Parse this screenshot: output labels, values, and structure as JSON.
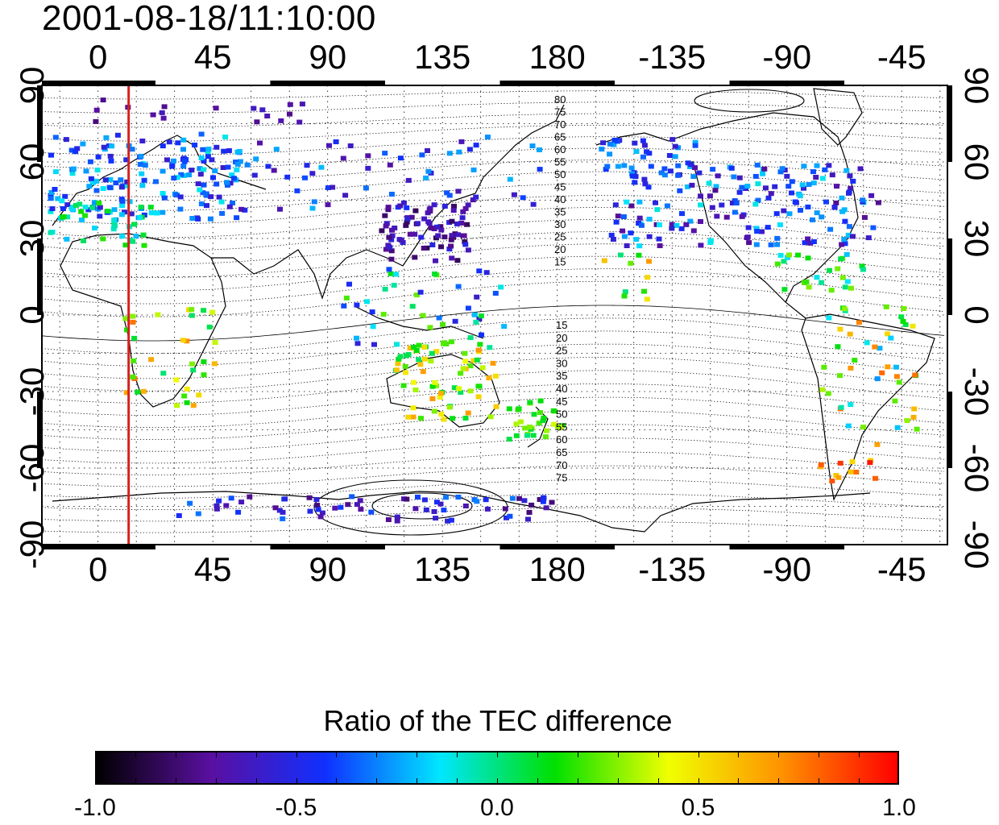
{
  "title": "2001-08-18/11:10:00",
  "lon_labels": [
    "0",
    "45",
    "90",
    "135",
    "180",
    "-135",
    "-90",
    "-45"
  ],
  "lat_labels": [
    "90",
    "60",
    "30",
    "0",
    "-30",
    "-60",
    "-90"
  ],
  "contour_labels_north": [
    "80",
    "75",
    "70",
    "65",
    "60",
    "55",
    "50",
    "45",
    "40",
    "35",
    "30",
    "25",
    "20",
    "15"
  ],
  "contour_labels_south": [
    "15",
    "20",
    "25",
    "30",
    "35",
    "40",
    "45",
    "50",
    "55",
    "60",
    "65",
    "70",
    "75"
  ],
  "colorbar": {
    "title": "Ratio of the TEC difference",
    "ticks": [
      "-1.0",
      "-0.5",
      "0.0",
      "0.5",
      "1.0"
    ],
    "colors": [
      "#000000",
      "#5a0fa0",
      "#1030ff",
      "#00e6ff",
      "#00e000",
      "#f0ff00",
      "#ff9000",
      "#ff0000"
    ]
  },
  "marker_longitude": 12,
  "marker_color": "#d42020",
  "tec_regions": [
    {
      "lon": [
        -20,
        55
      ],
      "lat": [
        38,
        72
      ],
      "count": 170,
      "values": [
        -0.6,
        -0.1
      ]
    },
    {
      "lon": [
        -20,
        20
      ],
      "lat": [
        28,
        45
      ],
      "count": 40,
      "values": [
        -0.3,
        0.2
      ]
    },
    {
      "lon": [
        -10,
        85
      ],
      "lat": [
        76,
        86
      ],
      "count": 18,
      "values": [
        -0.8,
        -0.6
      ]
    },
    {
      "lon": [
        55,
        180
      ],
      "lat": [
        42,
        72
      ],
      "count": 60,
      "values": [
        -0.7,
        -0.2
      ]
    },
    {
      "lon": [
        110,
        145
      ],
      "lat": [
        22,
        45
      ],
      "count": 80,
      "values": [
        -0.85,
        -0.5
      ]
    },
    {
      "lon": [
        95,
        160
      ],
      "lat": [
        -12,
        20
      ],
      "count": 45,
      "values": [
        -0.6,
        0.3
      ]
    },
    {
      "lon": [
        115,
        155
      ],
      "lat": [
        -40,
        -10
      ],
      "count": 70,
      "values": [
        0.0,
        0.7
      ]
    },
    {
      "lon": [
        160,
        182
      ],
      "lat": [
        -48,
        -32
      ],
      "count": 30,
      "values": [
        0.0,
        0.4
      ]
    },
    {
      "lon": [
        8,
        45
      ],
      "lat": [
        -35,
        5
      ],
      "count": 35,
      "values": [
        0.0,
        0.8
      ]
    },
    {
      "lon": [
        -160,
        -55
      ],
      "lat": [
        28,
        60
      ],
      "count": 170,
      "values": [
        -0.75,
        -0.1
      ]
    },
    {
      "lon": [
        -165,
        -125
      ],
      "lat": [
        55,
        70
      ],
      "count": 40,
      "values": [
        -0.6,
        -0.2
      ]
    },
    {
      "lon": [
        -95,
        -60
      ],
      "lat": [
        10,
        25
      ],
      "count": 25,
      "values": [
        -0.2,
        0.3
      ]
    },
    {
      "lon": [
        -80,
        -40
      ],
      "lat": [
        -50,
        5
      ],
      "count": 45,
      "values": [
        -0.3,
        0.8
      ]
    },
    {
      "lon": [
        -80,
        -55
      ],
      "lat": [
        -65,
        -55
      ],
      "count": 12,
      "values": [
        0.5,
        1.0
      ]
    },
    {
      "lon": [
        30,
        180
      ],
      "lat": [
        -80,
        -70
      ],
      "count": 70,
      "values": [
        -0.8,
        -0.3
      ]
    },
    {
      "lon": [
        -165,
        -145
      ],
      "lat": [
        5,
        25
      ],
      "count": 10,
      "values": [
        0.0,
        0.9
      ]
    }
  ]
}
